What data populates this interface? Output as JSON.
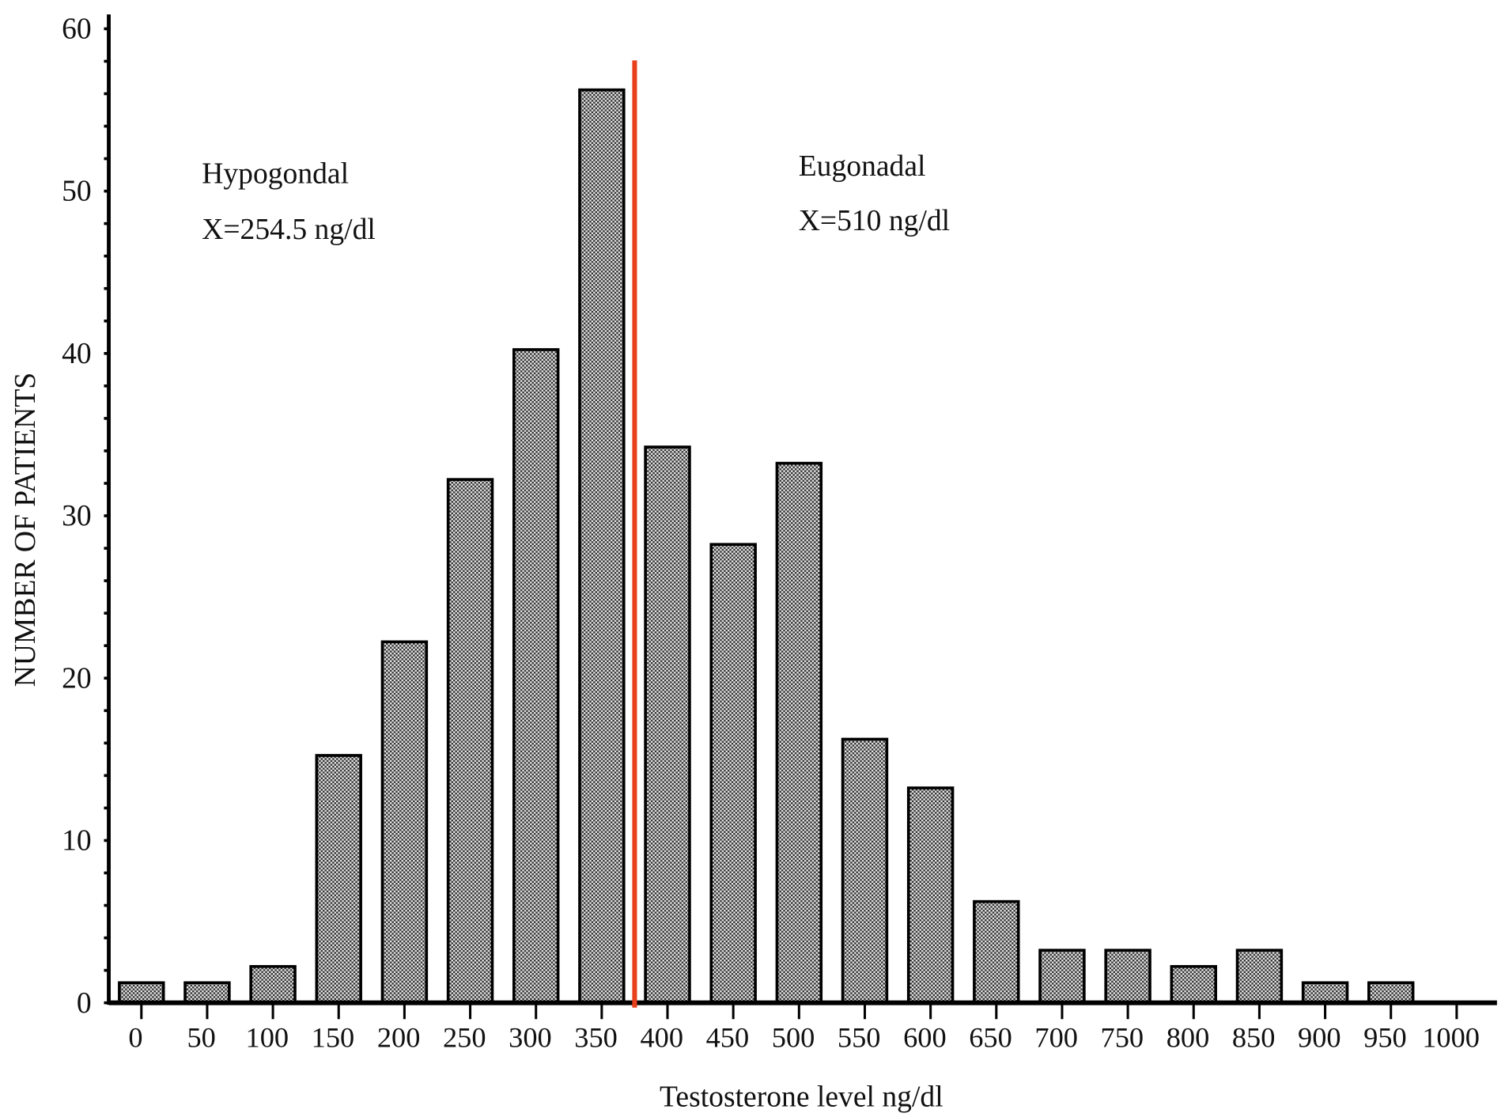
{
  "chart_data": {
    "type": "bar",
    "title": "",
    "xlabel": "Testosterone level ng/dl",
    "ylabel": "NUMBER OF PATIENTS",
    "categories": [
      "0",
      "50",
      "100",
      "150",
      "200",
      "250",
      "300",
      "350",
      "400",
      "450",
      "500",
      "550",
      "600",
      "650",
      "700",
      "750",
      "800",
      "850",
      "900",
      "950",
      "1000"
    ],
    "values": [
      1,
      1,
      2,
      15,
      22,
      32,
      40,
      56,
      34,
      28,
      33,
      16,
      13,
      6,
      3,
      3,
      2,
      3,
      1,
      1,
      0
    ],
    "ylim": [
      0,
      60
    ],
    "yticks": [
      "0",
      "10",
      "20",
      "30",
      "40",
      "50",
      "60"
    ],
    "grid": false,
    "divider": {
      "x": 375,
      "color": "#e8401c"
    },
    "annotations": [
      {
        "line1": "Hypogondal",
        "line2": "X=254.5 ng/dl",
        "x": 150,
        "y": 51
      },
      {
        "line1": "Eugonadal",
        "line2": "X=510 ng/dl",
        "x": 500,
        "y": 51
      }
    ],
    "bar_color": "#8f8f8f"
  }
}
